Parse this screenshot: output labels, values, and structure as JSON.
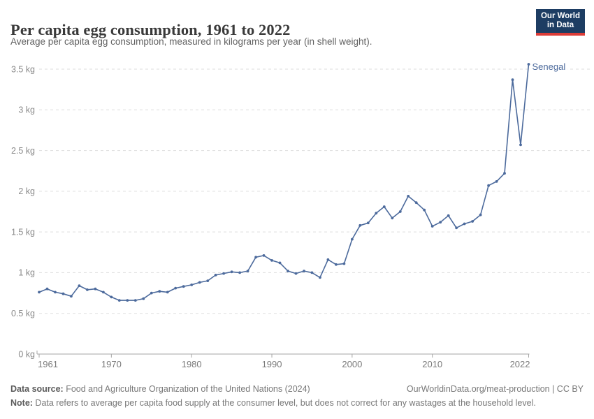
{
  "header": {
    "title": "Per capita egg consumption, 1961 to 2022",
    "subtitle": "Average per capita egg consumption, measured in kilograms per year (in shell weight)."
  },
  "logo": {
    "line1": "Our World",
    "line2": "in Data"
  },
  "chart_data": {
    "type": "line",
    "title": "Per capita egg consumption, 1961 to 2022",
    "xlabel": "",
    "ylabel": "",
    "unit": "kg",
    "xlim": [
      1961,
      2022
    ],
    "ylim": [
      0,
      3.5
    ],
    "grid": "horizontal-dashed",
    "legend_position": "end-of-line-label",
    "x_ticks": [
      1961,
      1970,
      1980,
      1990,
      2000,
      2010,
      2022
    ],
    "y_ticks": [
      0,
      0.5,
      1,
      1.5,
      2,
      2.5,
      3,
      3.5
    ],
    "y_tick_labels": [
      "0 kg",
      "0.5 kg",
      "1 kg",
      "1.5 kg",
      "2 kg",
      "2.5 kg",
      "3 kg",
      "3.5 kg"
    ],
    "series": [
      {
        "name": "Senegal",
        "color": "#4c6a9c",
        "x": [
          1961,
          1962,
          1963,
          1964,
          1965,
          1966,
          1967,
          1968,
          1969,
          1970,
          1971,
          1972,
          1973,
          1974,
          1975,
          1976,
          1977,
          1978,
          1979,
          1980,
          1981,
          1982,
          1983,
          1984,
          1985,
          1986,
          1987,
          1988,
          1989,
          1990,
          1991,
          1992,
          1993,
          1994,
          1995,
          1996,
          1997,
          1998,
          1999,
          2000,
          2001,
          2002,
          2003,
          2004,
          2005,
          2006,
          2007,
          2008,
          2009,
          2010,
          2011,
          2012,
          2013,
          2014,
          2015,
          2016,
          2017,
          2018,
          2019,
          2020,
          2021,
          2022
        ],
        "values": [
          0.76,
          0.8,
          0.76,
          0.74,
          0.71,
          0.84,
          0.79,
          0.8,
          0.76,
          0.7,
          0.66,
          0.66,
          0.66,
          0.68,
          0.75,
          0.77,
          0.76,
          0.81,
          0.83,
          0.85,
          0.88,
          0.9,
          0.97,
          0.99,
          1.01,
          1.0,
          1.02,
          1.19,
          1.21,
          1.15,
          1.12,
          1.02,
          0.99,
          1.02,
          1.0,
          0.94,
          1.16,
          1.1,
          1.11,
          1.41,
          1.58,
          1.61,
          1.73,
          1.81,
          1.67,
          1.75,
          1.94,
          1.86,
          1.77,
          1.57,
          1.62,
          1.7,
          1.55,
          1.6,
          1.63,
          1.71,
          2.07,
          2.12,
          2.22,
          3.37,
          2.57,
          3.56
        ]
      }
    ]
  },
  "footer": {
    "source_label": "Data source:",
    "source_text": " Food and Agriculture Organization of the United Nations (2024)",
    "credit": "OurWorldinData.org/meat-production | CC BY",
    "note_label": "Note:",
    "note_text": " Data refers to average per capita food supply at the consumer level, but does not correct for any wastages at the household level."
  },
  "colors": {
    "line": "#4c6a9c",
    "grid": "#dedede",
    "axis": "#a5a5a5",
    "y_tick_text": "#8a8a8a",
    "x_tick_text": "#7a7a7a",
    "logo_bg": "#1d3d63",
    "logo_accent": "#dc3c37"
  }
}
